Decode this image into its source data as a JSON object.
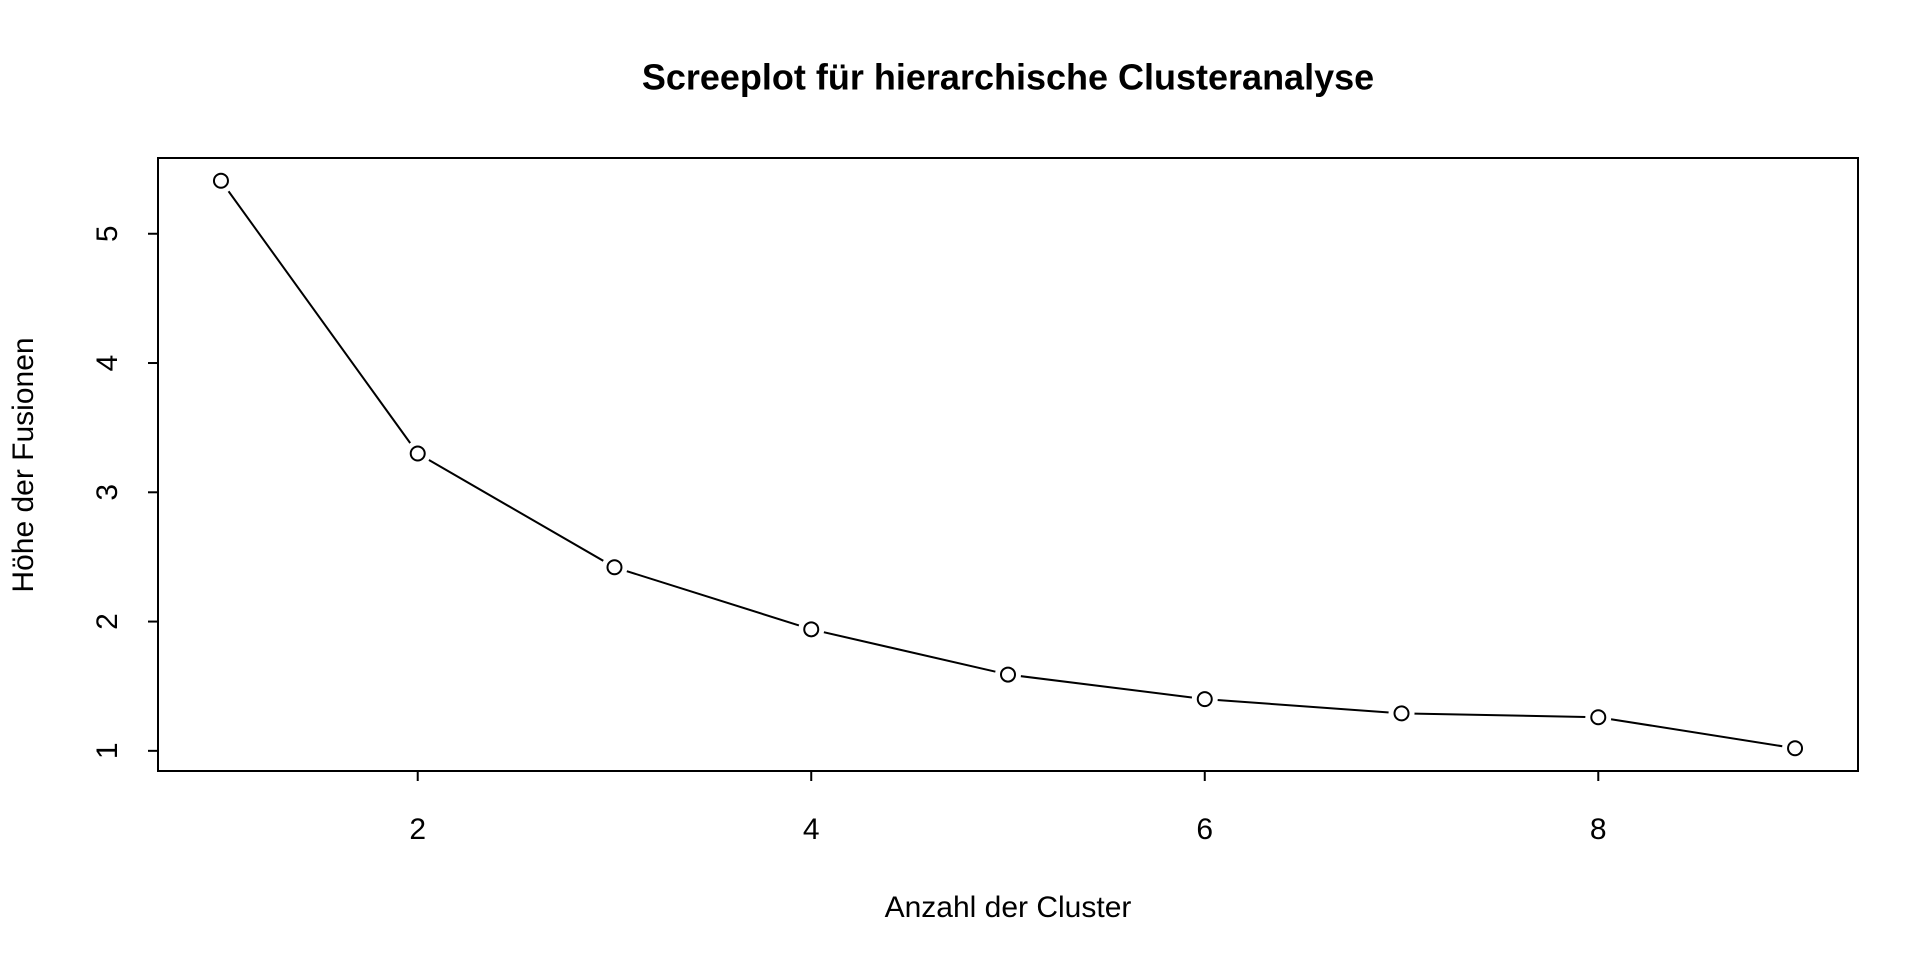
{
  "chart_data": {
    "type": "line",
    "title": "Screeplot für hierarchische Clusteranalyse",
    "x_label": "Anzahl der Cluster",
    "y_label": "Höhe der Fusionen",
    "x": [
      1,
      2,
      3,
      4,
      5,
      6,
      7,
      8,
      9
    ],
    "series": [
      {
        "color": "#000000",
        "values": [
          5.41,
          3.3,
          2.42,
          1.94,
          1.59,
          1.4,
          1.29,
          1.26,
          1.02
        ]
      }
    ],
    "xlim": [
      0.68,
      9.32
    ],
    "xticks": [
      2,
      4,
      6,
      8
    ],
    "ylim": [
      0.844,
      5.586
    ],
    "yticks": [
      1,
      2,
      3,
      4,
      5
    ]
  }
}
